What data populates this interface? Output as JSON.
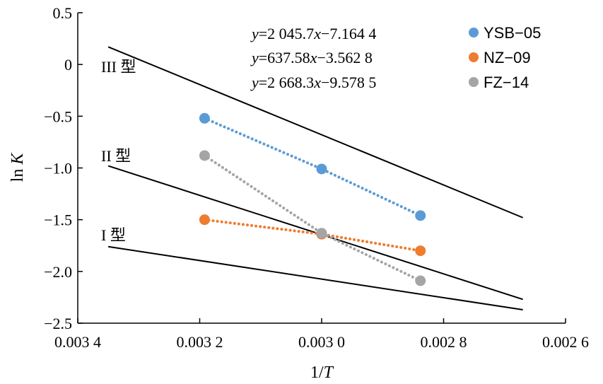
{
  "chart_data": {
    "type": "scatter",
    "xlabel_pre": "1/",
    "xlabel_var": "T",
    "ylabel_pre": "ln",
    "ylabel_var": "K",
    "xlim": [
      0.0034,
      0.0026
    ],
    "ylim": [
      -2.5,
      0.5
    ],
    "x_reversed": true,
    "x_ticks": [
      0.0034,
      0.0032,
      0.003,
      0.0028,
      0.0026
    ],
    "x_tick_labels": [
      "0.003 4",
      "0.003 2",
      "0.003 0",
      "0.002 8",
      "0.002 6"
    ],
    "y_ticks": [
      0.5,
      0,
      -0.5,
      -1.0,
      -1.5,
      -2.0,
      -2.5
    ],
    "y_tick_labels": [
      "0.5",
      "0",
      "−0.5",
      "−1.0",
      "−1.5",
      "−2.0",
      "−2.5"
    ],
    "grid": false,
    "legend_position": "top-right",
    "series": [
      {
        "name": "YSB−05",
        "color": "#5b9bd5",
        "x": [
          0.003192,
          0.003,
          0.002838
        ],
        "y": [
          -0.52,
          -1.01,
          -1.46
        ]
      },
      {
        "name": "NZ−09",
        "color": "#ed7d31",
        "x": [
          0.003192,
          0.003,
          0.002838
        ],
        "y": [
          -1.5,
          -1.64,
          -1.8
        ]
      },
      {
        "name": "FZ−14",
        "color": "#a5a5a5",
        "x": [
          0.003192,
          0.003,
          0.002838
        ],
        "y": [
          -0.88,
          -1.63,
          -2.09
        ]
      }
    ],
    "equations": [
      {
        "y": "y",
        "rest1": "=2 045.7",
        "x": "x",
        "rest2": "−7.164 4"
      },
      {
        "y": "y",
        "rest1": "=637.58",
        "x": "x",
        "rest2": "−3.562 8"
      },
      {
        "y": "y",
        "rest1": "=2 668.3",
        "x": "x",
        "rest2": "−9.578 5"
      }
    ],
    "type_boundaries": [
      {
        "label": "III 型",
        "x1": 0.00335,
        "y1": 0.17,
        "x2": 0.00267,
        "y2": -1.48
      },
      {
        "label": "II 型",
        "x1": 0.00335,
        "y1": -0.98,
        "x2": 0.00267,
        "y2": -2.27
      },
      {
        "label": "I 型",
        "x1": 0.00335,
        "y1": -1.76,
        "x2": 0.00267,
        "y2": -2.37
      }
    ]
  }
}
